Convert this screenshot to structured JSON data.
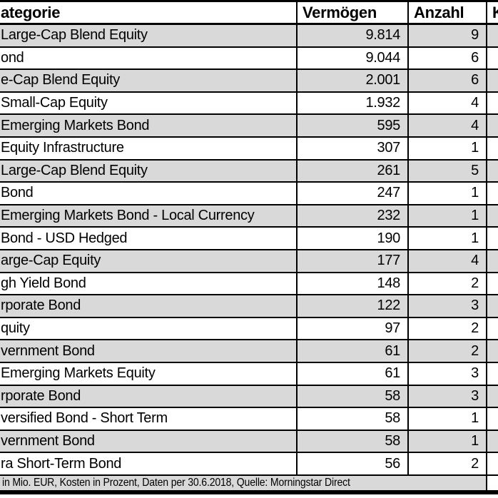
{
  "chart_data": {
    "type": "table",
    "columns": [
      {
        "label": "ategorie"
      },
      {
        "label": "Vermögen"
      },
      {
        "label": "Anzahl"
      },
      {
        "label": "K"
      }
    ],
    "rows": [
      {
        "kategorie": "Large-Cap Blend Equity",
        "vermoegen": "9.814",
        "anzahl": "9"
      },
      {
        "kategorie": "ond",
        "vermoegen": "9.044",
        "anzahl": "6"
      },
      {
        "kategorie": "e-Cap Blend Equity",
        "vermoegen": "2.001",
        "anzahl": "6"
      },
      {
        "kategorie": "Small-Cap Equity",
        "vermoegen": "1.932",
        "anzahl": "4"
      },
      {
        "kategorie": "Emerging Markets Bond",
        "vermoegen": "595",
        "anzahl": "4"
      },
      {
        "kategorie": "Equity Infrastructure",
        "vermoegen": "307",
        "anzahl": "1"
      },
      {
        "kategorie": "Large-Cap Blend Equity",
        "vermoegen": "261",
        "anzahl": "5"
      },
      {
        "kategorie": "Bond",
        "vermoegen": "247",
        "anzahl": "1"
      },
      {
        "kategorie": "Emerging Markets Bond - Local Currency",
        "vermoegen": "232",
        "anzahl": "1"
      },
      {
        "kategorie": "Bond - USD Hedged",
        "vermoegen": "190",
        "anzahl": "1"
      },
      {
        "kategorie": "arge-Cap Equity",
        "vermoegen": "177",
        "anzahl": "4"
      },
      {
        "kategorie": "gh Yield Bond",
        "vermoegen": "148",
        "anzahl": "2"
      },
      {
        "kategorie": "rporate Bond",
        "vermoegen": "122",
        "anzahl": "3"
      },
      {
        "kategorie": "quity",
        "vermoegen": "97",
        "anzahl": "2"
      },
      {
        "kategorie": "vernment Bond",
        "vermoegen": "61",
        "anzahl": "2"
      },
      {
        "kategorie": "Emerging Markets Equity",
        "vermoegen": "61",
        "anzahl": "3"
      },
      {
        "kategorie": "rporate Bond",
        "vermoegen": "58",
        "anzahl": "3"
      },
      {
        "kategorie": "versified Bond - Short Term",
        "vermoegen": "58",
        "anzahl": "1"
      },
      {
        "kategorie": "vernment Bond",
        "vermoegen": "58",
        "anzahl": "1"
      },
      {
        "kategorie": "ra Short-Term Bond",
        "vermoegen": "56",
        "anzahl": "2"
      }
    ],
    "footnote": "in Mio. EUR, Kosten in Prozent, Daten per 30.6.2018, Quelle: Morningstar Direct"
  },
  "colors": {
    "row_stripe": "#d9d9d9",
    "row_plain": "#ffffff",
    "header_bg": "#ffffff",
    "border": "#000000",
    "footnote_bg": "#d9d9d9",
    "text": "#000000"
  }
}
